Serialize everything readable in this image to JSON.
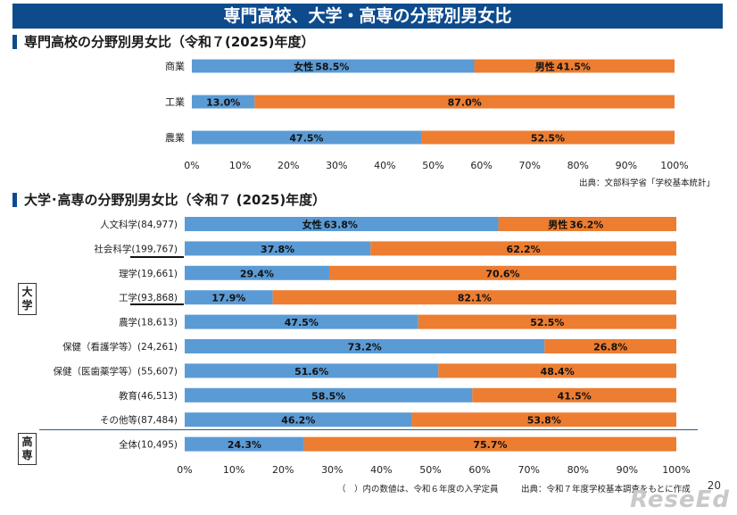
{
  "banner_title": "専門高校、大学・高専の分野別男女比",
  "page_number": "20",
  "logo_text": "ReseEd",
  "colors": {
    "female": "#5b9bd5",
    "male": "#ed7d31",
    "banner": "#0d4b8d"
  },
  "chart_data": [
    {
      "type": "bar",
      "orientation": "horizontal",
      "stacked": "percent",
      "title": "専門高校の分野別男女比（令和７(2025)年度）",
      "categories": [
        "商業",
        "工業",
        "農業"
      ],
      "series": [
        {
          "name": "女性",
          "values": [
            58.5,
            13.0,
            47.5
          ]
        },
        {
          "name": "男性",
          "values": [
            41.5,
            87.0,
            52.5
          ]
        }
      ],
      "data_labels": {
        "女性": [
          "58.5%",
          "13.0%",
          "47.5%"
        ],
        "男性": [
          "41.5%",
          "87.0%",
          "52.5%"
        ]
      },
      "xlim": [
        0,
        100
      ],
      "xticks": [
        "0%",
        "10%",
        "20%",
        "30%",
        "40%",
        "50%",
        "60%",
        "70%",
        "80%",
        "90%",
        "100%"
      ],
      "source": "出典：文部科学省「学校基本統計」"
    },
    {
      "type": "bar",
      "orientation": "horizontal",
      "stacked": "percent",
      "title": "大学･高専の分野別男女比（令和７ (2025)年度）",
      "categories": [
        "人文科学(84,977)",
        "社会科学(199,767)",
        "理学(19,661)",
        "工学(93,868)",
        "農学(18,613)",
        "保健（看護学等）(24,261)",
        "保健（医歯薬学等）(55,607)",
        "教育(46,513)",
        "その他等(87,484)",
        "全体(10,495)"
      ],
      "series": [
        {
          "name": "女性",
          "values": [
            63.8,
            37.8,
            29.4,
            17.9,
            47.5,
            73.2,
            51.6,
            58.5,
            46.2,
            24.3
          ]
        },
        {
          "name": "男性",
          "values": [
            36.2,
            62.2,
            70.6,
            82.1,
            52.5,
            26.8,
            48.4,
            41.5,
            53.8,
            75.7
          ]
        }
      ],
      "data_labels": {
        "女性": [
          "63.8%",
          "37.8%",
          "29.4%",
          "17.9%",
          "47.5%",
          "73.2%",
          "51.6%",
          "58.5%",
          "46.2%",
          "24.3%"
        ],
        "男性": [
          "36.2%",
          "62.2%",
          "70.6%",
          "82.1%",
          "52.5%",
          "26.8%",
          "48.4%",
          "41.5%",
          "53.8%",
          "75.7%"
        ]
      },
      "group_labels": [
        "大学",
        "高専"
      ],
      "underlined_categories": [
        "社会科学(199,767)",
        "工学(93,868)"
      ],
      "xlim": [
        0,
        100
      ],
      "xticks": [
        "0%",
        "10%",
        "20%",
        "30%",
        "40%",
        "50%",
        "60%",
        "70%",
        "80%",
        "90%",
        "100%"
      ],
      "note": "（　）内の数値は、令和６年度の入学定員",
      "source": "出典：令和７年度学校基本調査をもとに作成"
    }
  ]
}
